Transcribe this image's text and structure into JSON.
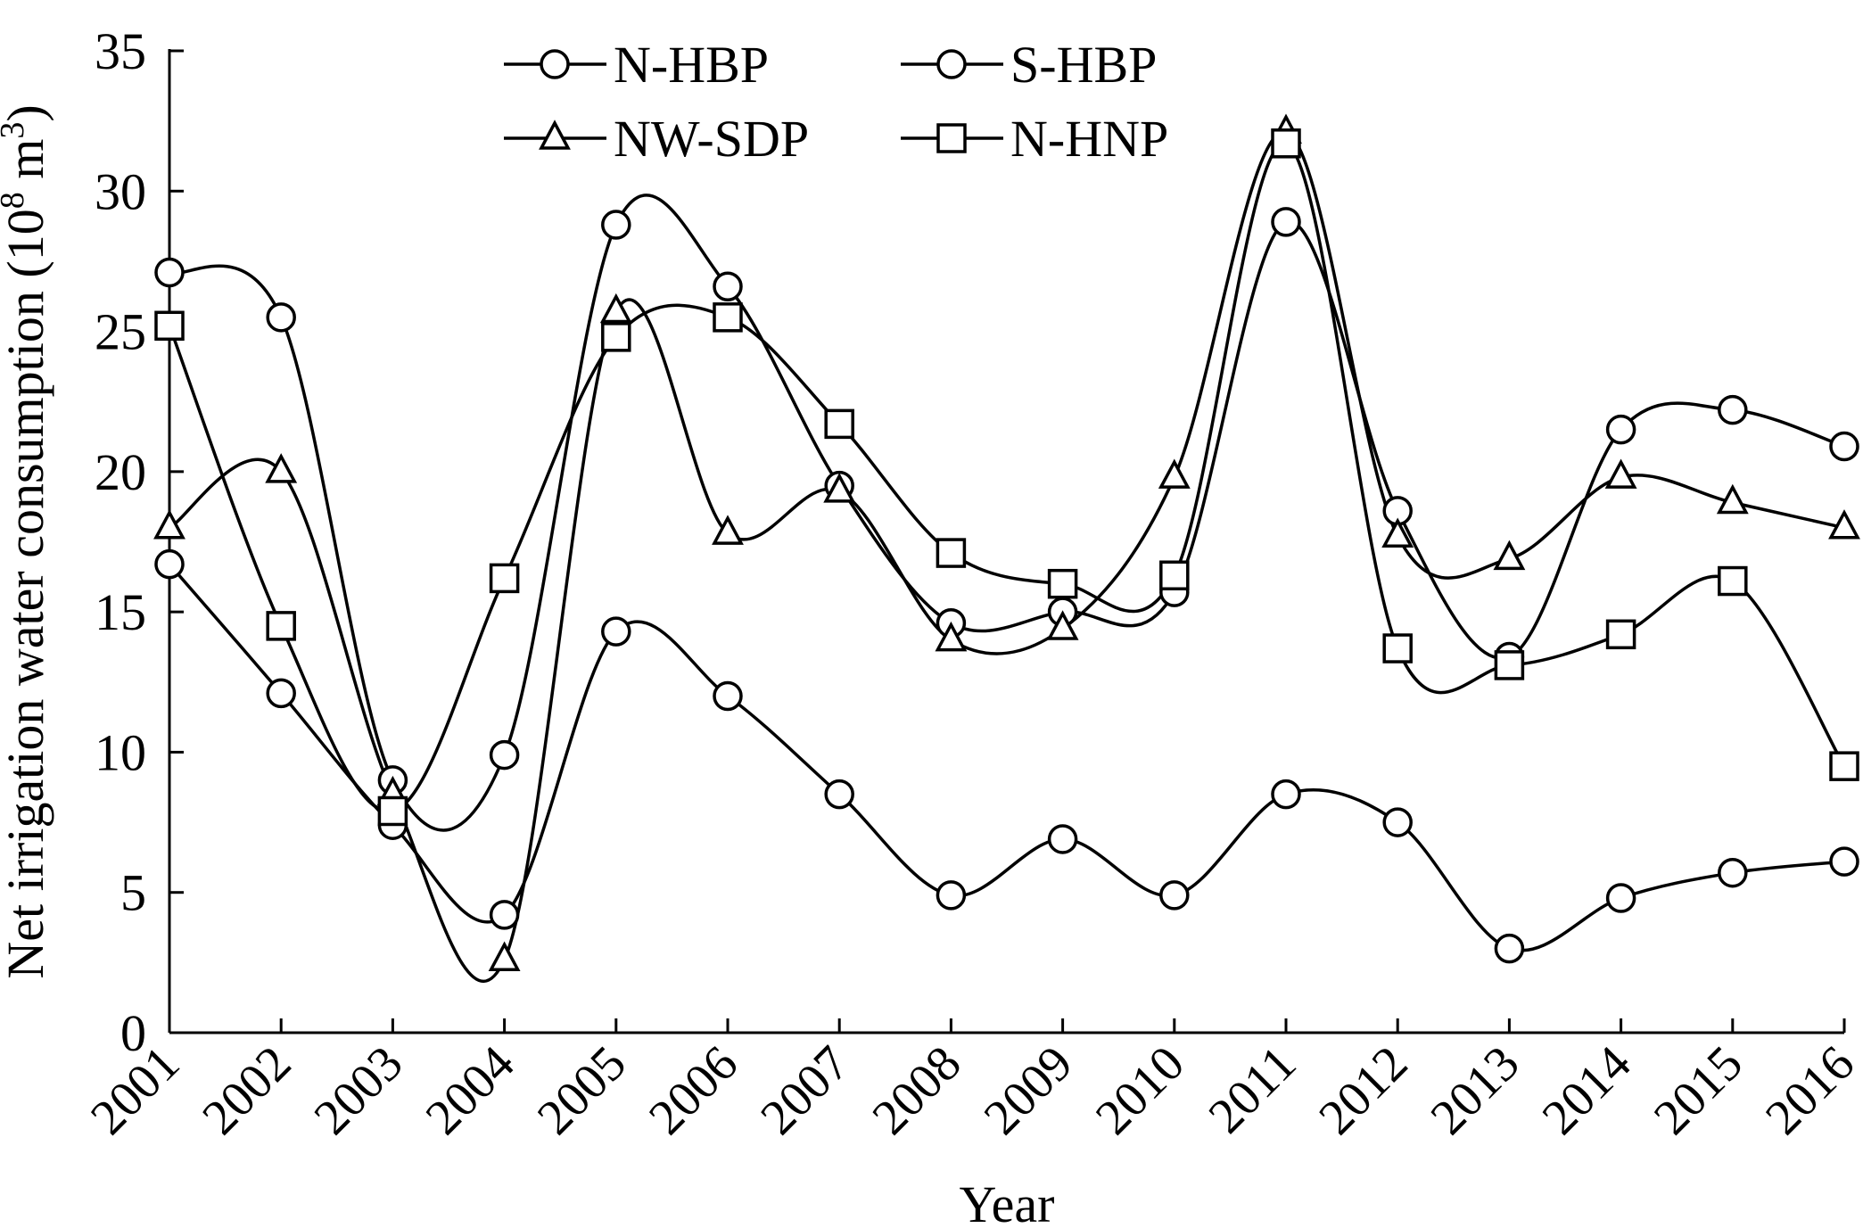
{
  "chart_data": {
    "type": "line",
    "xlabel": "Year",
    "ylabel": "Net irrigation water consumption (10",
    "ylabel_sup1": "8",
    "ylabel_mid": " m",
    "ylabel_sup2": "3",
    "ylabel_end": ")",
    "ylim": [
      0,
      35
    ],
    "yticks": [
      0,
      5,
      10,
      15,
      20,
      25,
      30,
      35
    ],
    "ytick_labels": [
      "0",
      "5",
      "10",
      "15",
      "20",
      "25",
      "30",
      "35"
    ],
    "x": [
      "2001",
      "2002",
      "2003",
      "2004",
      "2005",
      "2006",
      "2007",
      "2008",
      "2009",
      "2010",
      "2011",
      "2012",
      "2013",
      "2014",
      "2015",
      "2016"
    ],
    "legend_position": "top-center",
    "grid": false,
    "series": [
      {
        "name": "N-HBP",
        "marker": "circle",
        "values": [
          16.7,
          12.1,
          7.4,
          4.2,
          14.3,
          12.0,
          8.5,
          4.9,
          6.9,
          4.9,
          8.5,
          7.5,
          3.0,
          4.8,
          5.7,
          6.1
        ]
      },
      {
        "name": "S-HBP",
        "marker": "circle",
        "values": [
          27.1,
          25.5,
          9.0,
          9.9,
          28.8,
          26.6,
          19.5,
          14.6,
          15.0,
          15.7,
          28.9,
          18.6,
          13.4,
          21.5,
          22.2,
          20.9
        ]
      },
      {
        "name": "NW-SDP",
        "marker": "triangle",
        "values": [
          18.0,
          20.0,
          8.5,
          2.6,
          25.7,
          17.8,
          19.3,
          14.0,
          14.4,
          19.8,
          32.1,
          17.7,
          16.9,
          19.8,
          18.9,
          18.0
        ]
      },
      {
        "name": "N-HNP",
        "marker": "square",
        "values": [
          25.2,
          14.5,
          7.9,
          16.2,
          24.8,
          25.5,
          21.7,
          17.1,
          16.0,
          16.3,
          31.7,
          13.7,
          13.1,
          14.2,
          16.1,
          9.5
        ]
      }
    ]
  }
}
